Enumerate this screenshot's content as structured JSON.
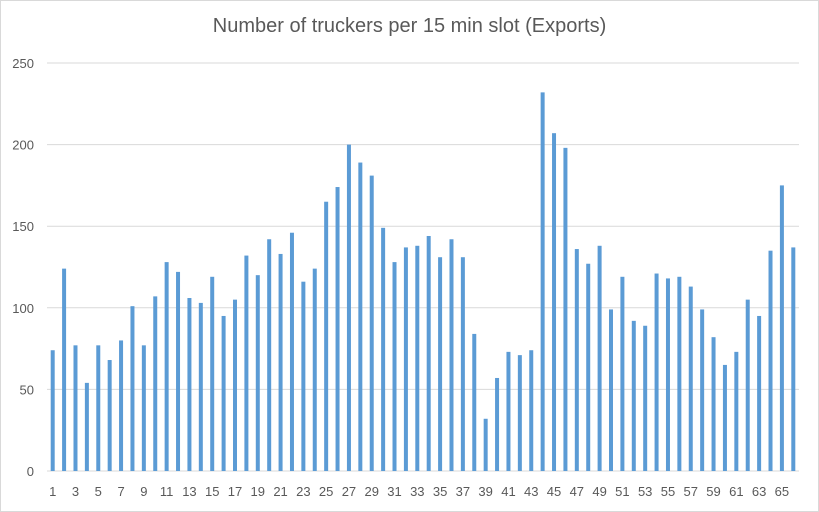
{
  "chart_data": {
    "type": "bar",
    "title": "Number of truckers per 15 min slot (Exports)",
    "xlabel": "",
    "ylabel": "",
    "ylim": [
      0,
      250
    ],
    "yticks": [
      0,
      50,
      100,
      150,
      200,
      250
    ],
    "xtick_labels": [
      "1",
      "3",
      "5",
      "7",
      "9",
      "11",
      "13",
      "15",
      "17",
      "19",
      "21",
      "23",
      "25",
      "27",
      "29",
      "31",
      "33",
      "35",
      "37",
      "39",
      "41",
      "43",
      "45",
      "47",
      "49",
      "51",
      "53",
      "55",
      "57",
      "59",
      "61",
      "63",
      "65"
    ],
    "categories": [
      1,
      2,
      3,
      4,
      5,
      6,
      7,
      8,
      9,
      10,
      11,
      12,
      13,
      14,
      15,
      16,
      17,
      18,
      19,
      20,
      21,
      22,
      23,
      24,
      25,
      26,
      27,
      28,
      29,
      30,
      31,
      32,
      33,
      34,
      35,
      36,
      37,
      38,
      39,
      40,
      41,
      42,
      43,
      44,
      45,
      46,
      47,
      48,
      49,
      50,
      51,
      52,
      53,
      54,
      55,
      56,
      57,
      58,
      59,
      60,
      61,
      62,
      63,
      64,
      65,
      66
    ],
    "values": [
      74,
      124,
      77,
      54,
      77,
      68,
      80,
      101,
      77,
      107,
      128,
      122,
      106,
      103,
      119,
      95,
      105,
      132,
      120,
      142,
      133,
      146,
      116,
      124,
      165,
      174,
      200,
      189,
      181,
      149,
      128,
      137,
      138,
      144,
      131,
      142,
      131,
      84,
      32,
      57,
      73,
      71,
      74,
      232,
      207,
      198,
      136,
      127,
      138,
      99,
      119,
      92,
      89,
      121,
      118,
      119,
      113,
      99,
      82,
      65,
      73,
      105,
      95,
      135,
      175,
      137
    ],
    "grid": true,
    "legend": "none",
    "bar_color": "#5b9bd5",
    "gridline_color": "#d9d9d9",
    "axis_text_color": "#595959"
  }
}
